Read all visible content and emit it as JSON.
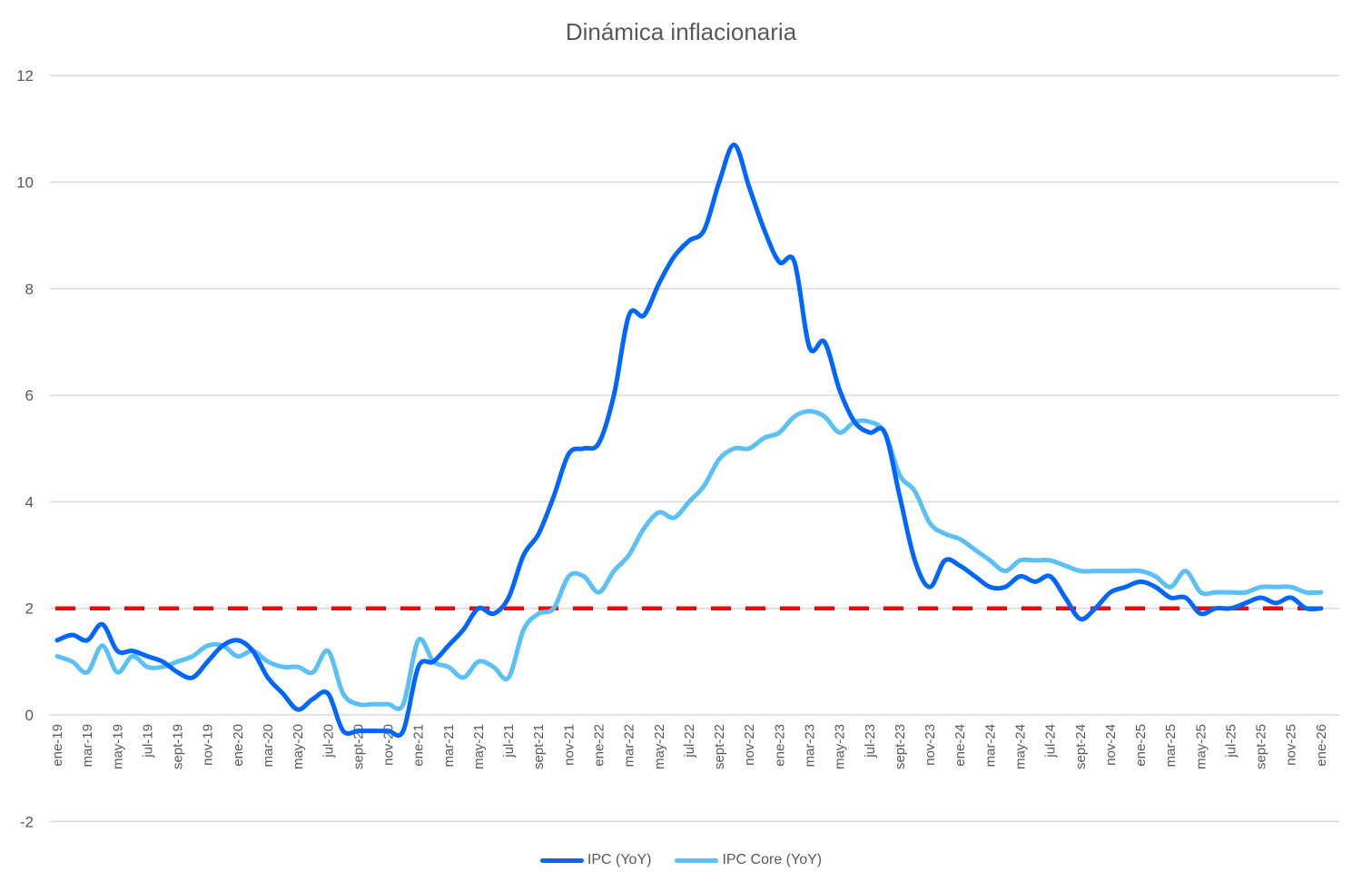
{
  "chart_data": {
    "type": "line",
    "title": "Dinámica inflacionaria",
    "xlabel": "",
    "ylabel": "",
    "ylim": [
      -2,
      12
    ],
    "yticks": [
      -2,
      0,
      2,
      4,
      6,
      8,
      10,
      12
    ],
    "grid": true,
    "legend_position": "bottom",
    "x": [
      "ene-19",
      "feb-19",
      "mar-19",
      "abr-19",
      "may-19",
      "jun-19",
      "jul-19",
      "ago-19",
      "sept-19",
      "oct-19",
      "nov-19",
      "dic-19",
      "ene-20",
      "feb-20",
      "mar-20",
      "abr-20",
      "may-20",
      "jun-20",
      "jul-20",
      "ago-20",
      "sept-20",
      "oct-20",
      "nov-20",
      "dic-20",
      "ene-21",
      "feb-21",
      "mar-21",
      "abr-21",
      "may-21",
      "jun-21",
      "jul-21",
      "ago-21",
      "sept-21",
      "oct-21",
      "nov-21",
      "dic-21",
      "ene-22",
      "feb-22",
      "mar-22",
      "abr-22",
      "may-22",
      "jun-22",
      "jul-22",
      "ago-22",
      "sept-22",
      "oct-22",
      "nov-22",
      "dic-22",
      "ene-23",
      "feb-23",
      "mar-23",
      "abr-23",
      "may-23",
      "jun-23",
      "jul-23",
      "ago-23",
      "sept-23",
      "oct-23",
      "nov-23",
      "dic-23",
      "ene-24",
      "feb-24",
      "mar-24",
      "abr-24",
      "may-24",
      "jun-24",
      "jul-24",
      "ago-24",
      "sept-24",
      "oct-24",
      "nov-24",
      "dic-24",
      "ene-25",
      "feb-25",
      "mar-25",
      "abr-25",
      "may-25",
      "jun-25",
      "jul-25",
      "ago-25",
      "sept-25",
      "oct-25",
      "nov-25",
      "dic-25",
      "ene-26"
    ],
    "xtick_labels": [
      "ene-19",
      "mar-19",
      "may-19",
      "jul-19",
      "sept-19",
      "nov-19",
      "ene-20",
      "mar-20",
      "may-20",
      "jul-20",
      "sept-20",
      "nov-20",
      "ene-21",
      "mar-21",
      "may-21",
      "jul-21",
      "sept-21",
      "nov-21",
      "ene-22",
      "mar-22",
      "may-22",
      "jul-22",
      "sept-22",
      "nov-22",
      "ene-23",
      "mar-23",
      "may-23",
      "jul-23",
      "sept-23",
      "nov-23",
      "ene-24",
      "mar-24",
      "may-24",
      "jul-24",
      "sept-24",
      "nov-24",
      "ene-25",
      "mar-25",
      "may-25",
      "jul-25",
      "sept-25",
      "nov-25",
      "ene-26"
    ],
    "series": [
      {
        "name": "IPC (YoY)",
        "color": "#0066FF",
        "values": [
          1.4,
          1.5,
          1.4,
          1.7,
          1.2,
          1.2,
          1.1,
          1.0,
          0.8,
          0.7,
          1.0,
          1.3,
          1.4,
          1.2,
          0.7,
          0.4,
          0.1,
          0.3,
          0.4,
          -0.3,
          -0.3,
          -0.3,
          -0.3,
          -0.3,
          0.9,
          1.0,
          1.3,
          1.6,
          2.0,
          1.9,
          2.2,
          3.0,
          3.4,
          4.1,
          4.9,
          5.0,
          5.1,
          6.0,
          7.5,
          7.5,
          8.1,
          8.6,
          8.9,
          9.1,
          10.0,
          10.7,
          9.9,
          9.1,
          8.5,
          8.5,
          6.9,
          7.0,
          6.1,
          5.5,
          5.3,
          5.3,
          4.1,
          2.9,
          2.4,
          2.9,
          2.8,
          2.6,
          2.4,
          2.4,
          2.6,
          2.5,
          2.6,
          2.2,
          1.8,
          2.0,
          2.3,
          2.4,
          2.5,
          2.4,
          2.2,
          2.2,
          1.9,
          2.0,
          2.0,
          2.1,
          2.2,
          2.1,
          2.2,
          2.0,
          2.0
        ]
      },
      {
        "name": "IPC Core (YoY)",
        "color": "#5BC0F5",
        "values": [
          1.1,
          1.0,
          0.8,
          1.3,
          0.8,
          1.1,
          0.9,
          0.9,
          1.0,
          1.1,
          1.3,
          1.3,
          1.1,
          1.2,
          1.0,
          0.9,
          0.9,
          0.8,
          1.2,
          0.4,
          0.2,
          0.2,
          0.2,
          0.2,
          1.4,
          1.0,
          0.9,
          0.7,
          1.0,
          0.9,
          0.7,
          1.6,
          1.9,
          2.0,
          2.6,
          2.6,
          2.3,
          2.7,
          3.0,
          3.5,
          3.8,
          3.7,
          4.0,
          4.3,
          4.8,
          5.0,
          5.0,
          5.2,
          5.3,
          5.6,
          5.7,
          5.6,
          5.3,
          5.5,
          5.5,
          5.3,
          4.5,
          4.2,
          3.6,
          3.4,
          3.3,
          3.1,
          2.9,
          2.7,
          2.9,
          2.9,
          2.9,
          2.8,
          2.7,
          2.7,
          2.7,
          2.7,
          2.7,
          2.6,
          2.4,
          2.7,
          2.3,
          2.3,
          2.3,
          2.3,
          2.4,
          2.4,
          2.4,
          2.3,
          2.3
        ]
      }
    ],
    "reference_lines": [
      {
        "name": "target",
        "y": 2,
        "color": "#FF0000",
        "style": "dashed"
      }
    ]
  },
  "legend": {
    "items": [
      {
        "label": "IPC (YoY)",
        "color": "#0066FF"
      },
      {
        "label": "IPC Core (YoY)",
        "color": "#5BC0F5"
      }
    ]
  }
}
